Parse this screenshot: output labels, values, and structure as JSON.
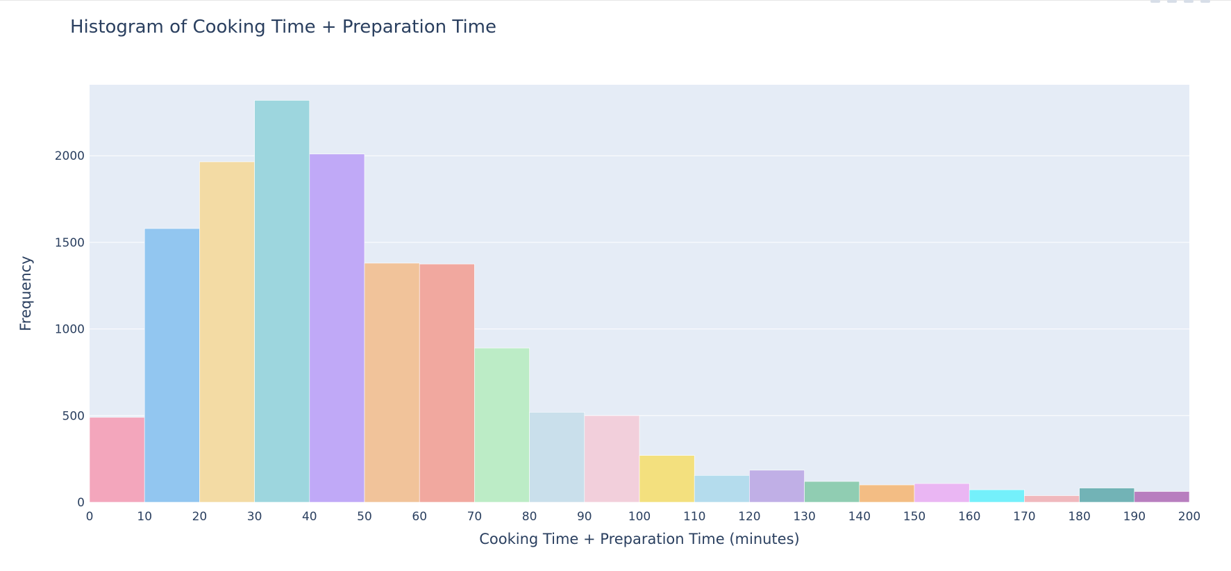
{
  "chart_data": {
    "type": "bar",
    "title": "Histogram of Cooking Time + Preparation Time",
    "xlabel": "Cooking Time + Preparation Time (minutes)",
    "ylabel": "Frequency",
    "xlim": [
      0,
      200
    ],
    "ylim": [
      0,
      2410
    ],
    "xticks": [
      0,
      10,
      20,
      30,
      40,
      50,
      60,
      70,
      80,
      90,
      100,
      110,
      120,
      130,
      140,
      150,
      160,
      170,
      180,
      190,
      200
    ],
    "yticks": [
      0,
      500,
      1000,
      1500,
      2000
    ],
    "bin_width": 10,
    "bins": [
      {
        "start": 0,
        "end": 10,
        "value": 490,
        "color": "#f3a6bc"
      },
      {
        "start": 10,
        "end": 20,
        "value": 1580,
        "color": "#92c6f0"
      },
      {
        "start": 20,
        "end": 30,
        "value": 1965,
        "color": "#f3dba4"
      },
      {
        "start": 30,
        "end": 40,
        "value": 2320,
        "color": "#9dd6de"
      },
      {
        "start": 40,
        "end": 50,
        "value": 2010,
        "color": "#c0a9f7"
      },
      {
        "start": 50,
        "end": 60,
        "value": 1380,
        "color": "#f1c39a"
      },
      {
        "start": 60,
        "end": 70,
        "value": 1375,
        "color": "#f1a89f"
      },
      {
        "start": 70,
        "end": 80,
        "value": 890,
        "color": "#bcecc6"
      },
      {
        "start": 80,
        "end": 90,
        "value": 520,
        "color": "#c9dfeb"
      },
      {
        "start": 90,
        "end": 100,
        "value": 500,
        "color": "#f2cfdb"
      },
      {
        "start": 100,
        "end": 110,
        "value": 270,
        "color": "#f3e07e"
      },
      {
        "start": 110,
        "end": 120,
        "value": 155,
        "color": "#b4dced"
      },
      {
        "start": 120,
        "end": 130,
        "value": 185,
        "color": "#c0afe6"
      },
      {
        "start": 130,
        "end": 140,
        "value": 120,
        "color": "#90cdb2"
      },
      {
        "start": 140,
        "end": 150,
        "value": 100,
        "color": "#f3bd84"
      },
      {
        "start": 150,
        "end": 160,
        "value": 108,
        "color": "#eab6f3"
      },
      {
        "start": 160,
        "end": 170,
        "value": 72,
        "color": "#74f0fb"
      },
      {
        "start": 170,
        "end": 180,
        "value": 38,
        "color": "#f0b8bd"
      },
      {
        "start": 180,
        "end": 190,
        "value": 82,
        "color": "#72b3b6"
      },
      {
        "start": 190,
        "end": 200,
        "value": 62,
        "color": "#b87ebf"
      }
    ],
    "grid": true,
    "legend": "none",
    "colors": {
      "plot_background": "#e5ecf6",
      "gridline": "#ffffff",
      "text": "#2a3f5f"
    }
  }
}
